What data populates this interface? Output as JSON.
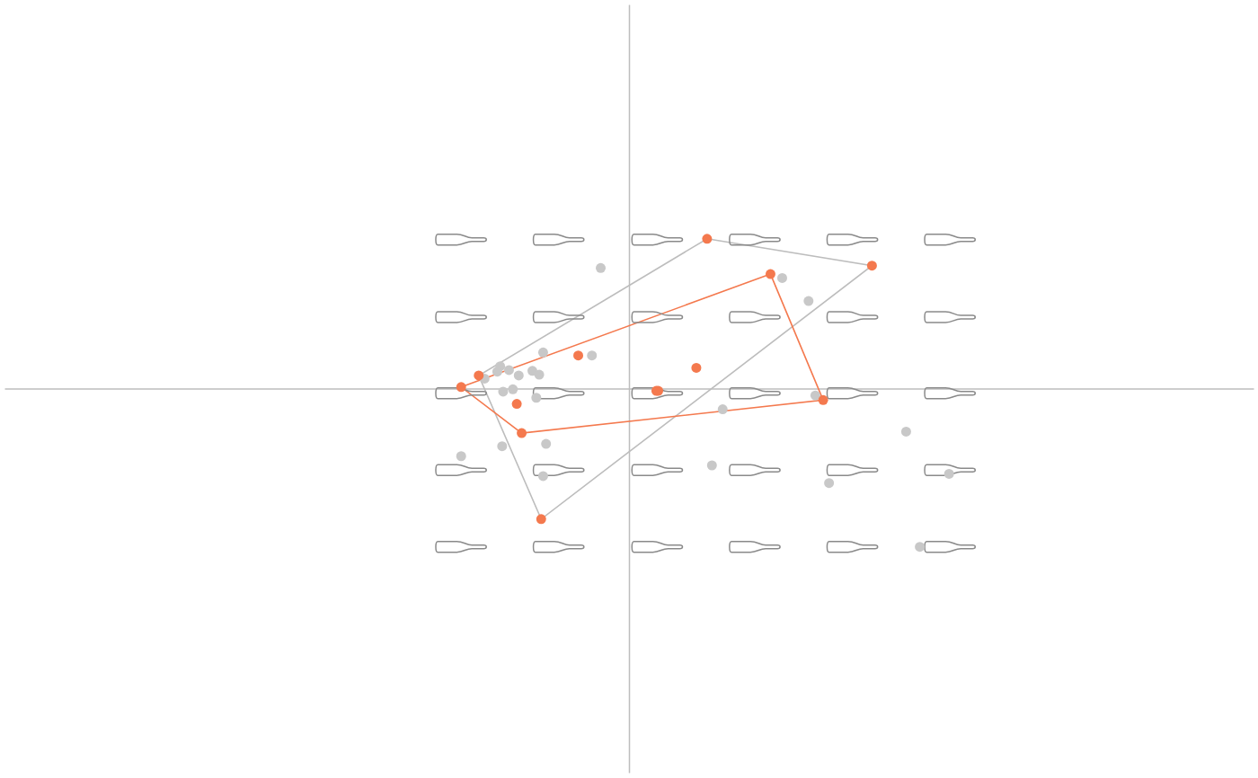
{
  "chart_data": {
    "type": "scatter",
    "xlim": [
      -6.4,
      6.4
    ],
    "ylim": [
      -5,
      5
    ],
    "xticks": [],
    "yticks": [],
    "tick_labels": false,
    "grid": false,
    "series": [
      {
        "type": "polygon",
        "color": "#bdbdbd",
        "x": [
          0.8,
          2.49,
          -0.9,
          -1.54
        ],
        "values": [
          1.95,
          1.6,
          -1.7,
          0.17
        ]
      },
      {
        "type": "polygon",
        "color": "#f4794e",
        "x": [
          -1.72,
          1.45,
          1.99,
          -1.1
        ],
        "values": [
          0.02,
          1.49,
          -0.15,
          -0.58
        ]
      },
      {
        "type": "glyph",
        "marker": "bottle",
        "color": "#8a8a8a",
        "x": [
          -1.72,
          -0.72,
          0.29,
          1.29,
          2.29,
          3.29,
          -1.72,
          -0.72,
          0.29,
          1.29,
          2.29,
          3.29,
          -1.72,
          -0.72,
          0.29,
          1.29,
          2.29,
          3.29,
          -1.72,
          -0.72,
          0.29,
          1.29,
          2.29,
          3.29,
          -1.72,
          -0.72,
          0.29,
          1.29,
          2.29,
          3.29
        ],
        "values": [
          1.94,
          1.94,
          1.94,
          1.94,
          1.94,
          1.94,
          0.93,
          0.93,
          0.93,
          0.93,
          0.93,
          0.93,
          -0.06,
          -0.06,
          -0.06,
          -0.06,
          -0.06,
          -0.06,
          -1.06,
          -1.06,
          -1.06,
          -1.06,
          -1.06,
          -1.06,
          -2.06,
          -2.06,
          -2.06,
          -2.06,
          -2.06,
          -2.06
        ]
      },
      {
        "type": "scatter",
        "color": "#c8c8c8",
        "x": [
          -0.29,
          1.57,
          1.84,
          -0.88,
          -0.38,
          -1.32,
          -1.35,
          -1.23,
          -1.13,
          -0.99,
          -0.92,
          -1.48,
          -1.29,
          -1.19,
          -0.95,
          1.91,
          0.96,
          2.84,
          -1.72,
          -1.3,
          -0.85,
          -0.88,
          0.85,
          3.28,
          2.05,
          2.98
        ],
        "values": [
          1.57,
          1.44,
          1.14,
          0.47,
          0.43,
          0.29,
          0.22,
          0.24,
          0.17,
          0.23,
          0.18,
          0.13,
          -0.04,
          -0.01,
          -0.12,
          -0.09,
          -0.27,
          -0.56,
          -0.88,
          -0.75,
          -0.72,
          -1.14,
          -1.0,
          -1.11,
          -1.23,
          -2.06
        ]
      },
      {
        "type": "scatter",
        "color": "#f4794e",
        "x": [
          0.8,
          2.49,
          1.45,
          -0.52,
          0.69,
          0.28,
          0.3,
          -1.54,
          -1.72,
          -1.15,
          -1.1,
          1.99,
          -0.9
        ],
        "values": [
          1.95,
          1.6,
          1.49,
          0.43,
          0.27,
          -0.03,
          -0.03,
          0.17,
          0.02,
          -0.2,
          -0.58,
          -0.15,
          -1.7
        ]
      }
    ]
  }
}
